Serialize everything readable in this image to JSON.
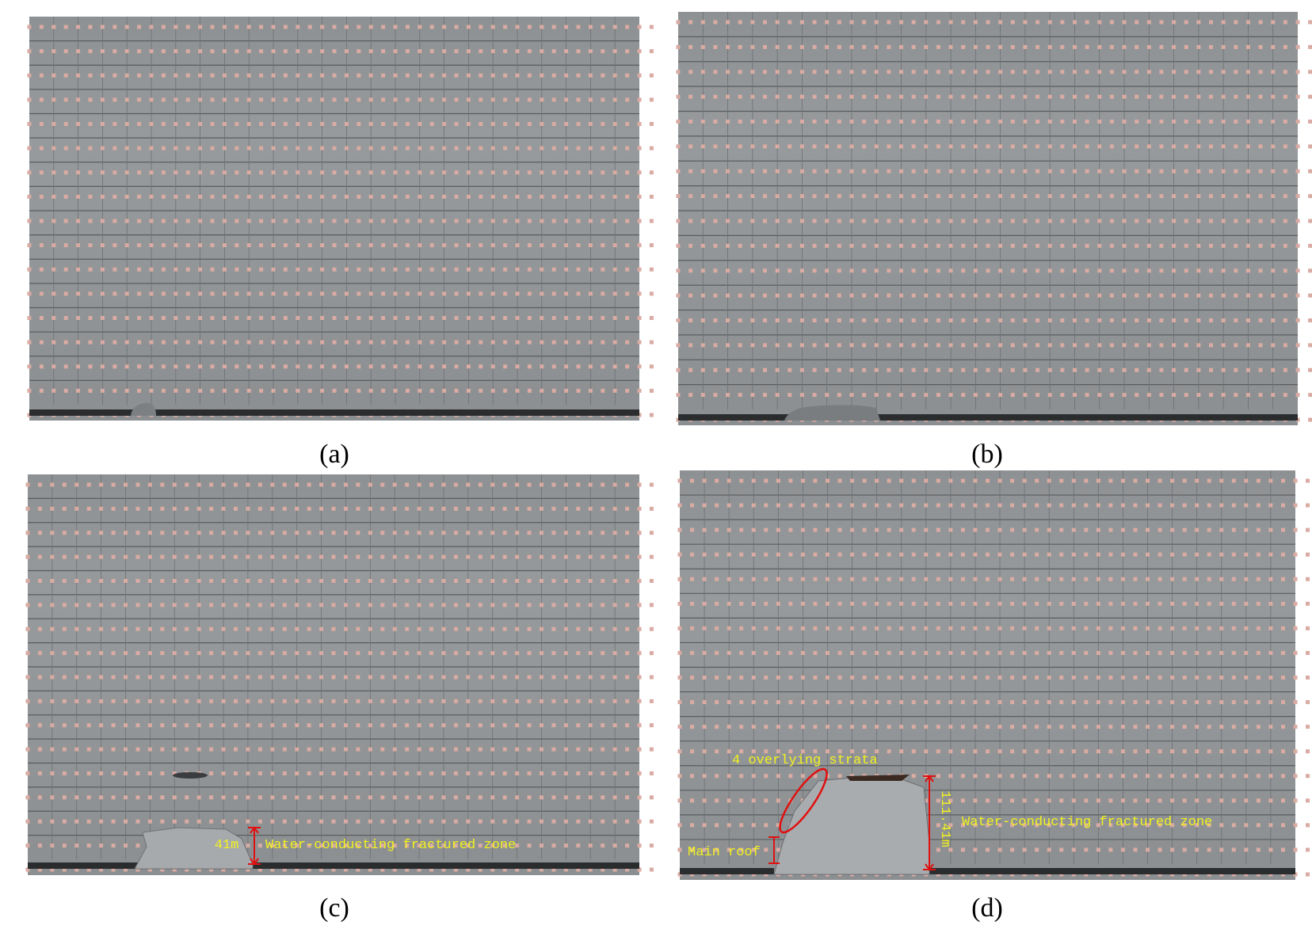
{
  "panels": [
    {
      "caption": "(a)"
    },
    {
      "caption": "(b)"
    },
    {
      "caption": "(c)",
      "annotations": [
        "41m",
        "Water-conducting fractured zone"
      ]
    },
    {
      "caption": "(d)",
      "annotations": [
        "4 overlying strata",
        "111.41m",
        "Water-conducting fractured zone",
        "Main roof"
      ]
    }
  ]
}
